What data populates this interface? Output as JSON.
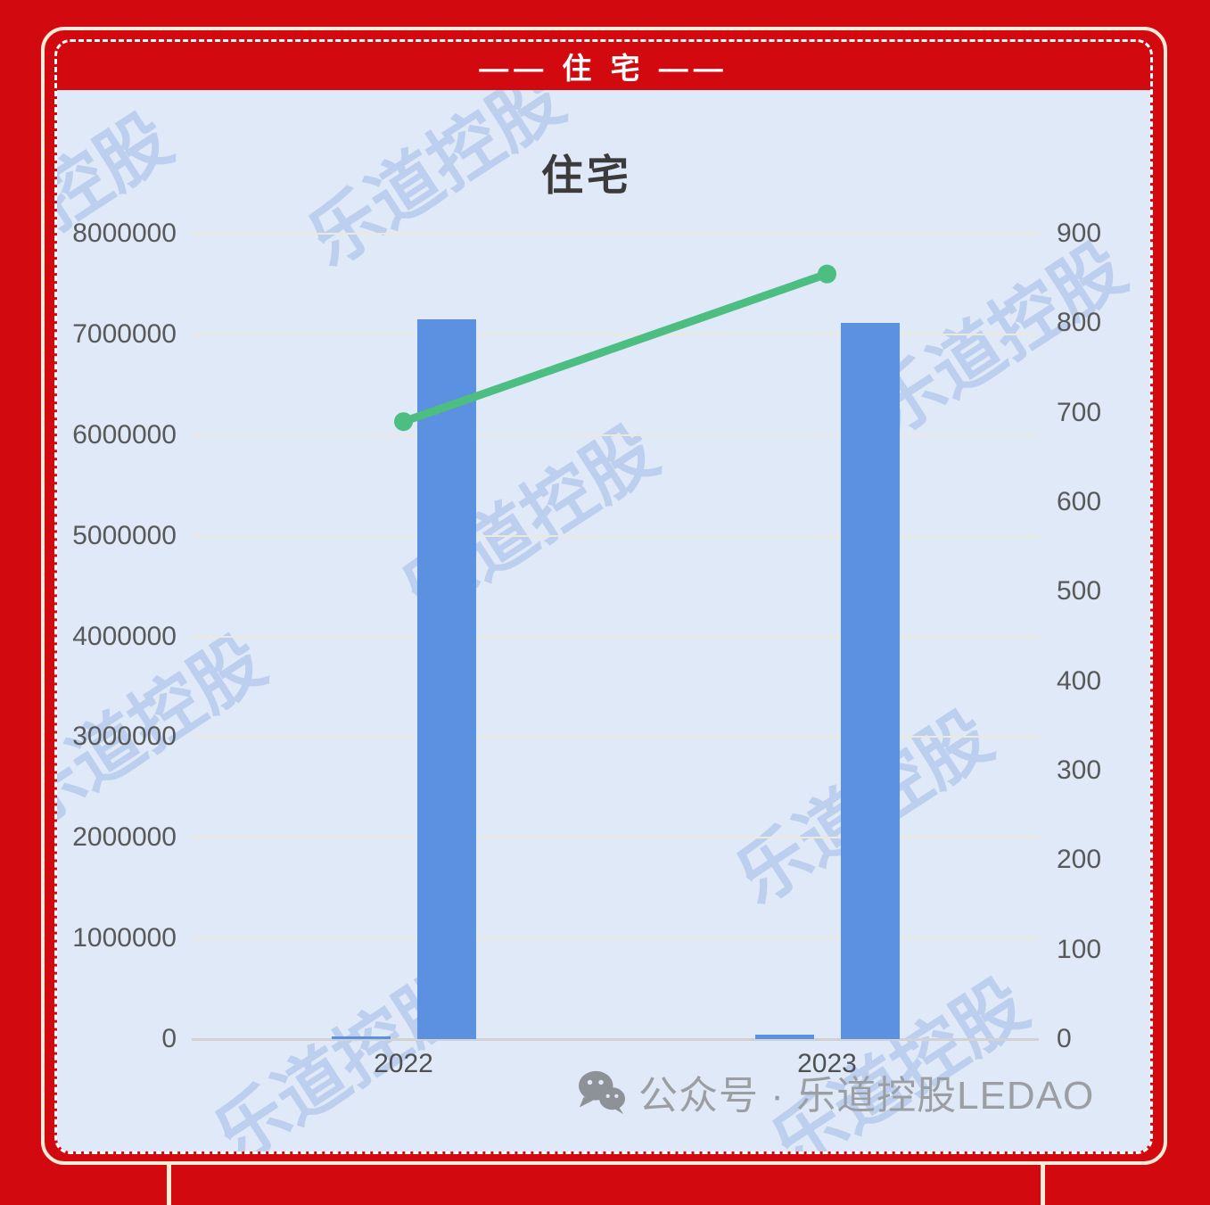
{
  "page": {
    "background_color": "#d20a0f",
    "frame_color": "#f8ecd8",
    "panel_color": "#dfe9f7"
  },
  "header": {
    "title": "—— 住 宅 ——"
  },
  "watermark": {
    "text": "乐道控股"
  },
  "chart_data": {
    "type": "bar",
    "title": "住宅",
    "categories": [
      "2022",
      "2023"
    ],
    "series": [
      {
        "name": "bar_series_small",
        "type": "bar",
        "axis": "left",
        "color": "#5b91e0",
        "values": [
          25000,
          40000
        ]
      },
      {
        "name": "bar_series_main",
        "type": "bar",
        "axis": "left",
        "color": "#5b91e0",
        "values": [
          7150000,
          7110000
        ]
      },
      {
        "name": "line_series",
        "type": "line",
        "axis": "right",
        "color": "#4dbe81",
        "values": [
          690,
          855
        ]
      }
    ],
    "left_axis": {
      "min": 0,
      "max": 8000000,
      "tick_labels": [
        "0",
        "1000000",
        "2000000",
        "3000000",
        "4000000",
        "5000000",
        "6000000",
        "7000000",
        "8000000"
      ]
    },
    "right_axis": {
      "min": 0,
      "max": 900,
      "tick_labels": [
        "0",
        "100",
        "200",
        "300",
        "400",
        "500",
        "600",
        "700",
        "800",
        "900"
      ]
    },
    "grid": true,
    "legend_position": "none",
    "xlabel": "",
    "ylabel": ""
  },
  "footer": {
    "label": "公众号 · 乐道控股LEDAO",
    "icon": "wechat-icon"
  }
}
